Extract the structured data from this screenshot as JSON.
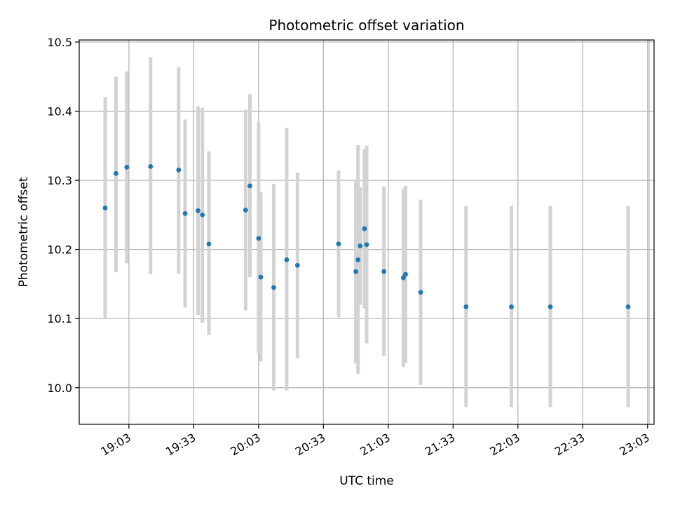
{
  "chart_data": {
    "type": "scatter",
    "title": "Photometric offset variation",
    "xlabel": "UTC time",
    "ylabel": "Photometric offset",
    "grid": true,
    "x_ticks": [
      "19:03",
      "19:33",
      "20:03",
      "20:33",
      "21:03",
      "21:33",
      "22:03",
      "22:33",
      "23:03"
    ],
    "y_ticks": [
      "10.0",
      "10.1",
      "10.2",
      "10.3",
      "10.4",
      "10.5"
    ],
    "xlim": [
      "18:40",
      "23:06"
    ],
    "ylim": [
      9.947,
      10.503
    ],
    "colors": {
      "points": "#1f77b4",
      "error_bars": "#d3d3d3",
      "grid": "#b0b0b0"
    },
    "series": [
      {
        "points": [
          {
            "x": "18:52",
            "y": 10.26,
            "ylow": 10.1,
            "yhigh": 10.42
          },
          {
            "x": "18:57",
            "y": 10.31,
            "ylow": 10.167,
            "yhigh": 10.45
          },
          {
            "x": "19:02",
            "y": 10.319,
            "ylow": 10.18,
            "yhigh": 10.458
          },
          {
            "x": "19:13",
            "y": 10.32,
            "ylow": 10.164,
            "yhigh": 10.478
          },
          {
            "x": "19:26",
            "y": 10.315,
            "ylow": 10.165,
            "yhigh": 10.464
          },
          {
            "x": "19:29",
            "y": 10.252,
            "ylow": 10.116,
            "yhigh": 10.388
          },
          {
            "x": "19:35",
            "y": 10.256,
            "ylow": 10.105,
            "yhigh": 10.407
          },
          {
            "x": "19:37",
            "y": 10.25,
            "ylow": 10.094,
            "yhigh": 10.405
          },
          {
            "x": "19:40",
            "y": 10.208,
            "ylow": 10.076,
            "yhigh": 10.342
          },
          {
            "x": "19:57",
            "y": 10.257,
            "ylow": 10.112,
            "yhigh": 10.402
          },
          {
            "x": "19:59",
            "y": 10.292,
            "ylow": 10.16,
            "yhigh": 10.425
          },
          {
            "x": "20:03",
            "y": 10.216,
            "ylow": 10.05,
            "yhigh": 10.384
          },
          {
            "x": "20:04",
            "y": 10.16,
            "ylow": 10.038,
            "yhigh": 10.283
          },
          {
            "x": "20:10",
            "y": 10.145,
            "ylow": 9.996,
            "yhigh": 10.295
          },
          {
            "x": "20:16",
            "y": 10.185,
            "ylow": 9.996,
            "yhigh": 10.376
          },
          {
            "x": "20:21",
            "y": 10.177,
            "ylow": 10.043,
            "yhigh": 10.311
          },
          {
            "x": "20:40",
            "y": 10.208,
            "ylow": 10.102,
            "yhigh": 10.314
          },
          {
            "x": "20:48",
            "y": 10.168,
            "ylow": 10.035,
            "yhigh": 10.3
          },
          {
            "x": "20:49",
            "y": 10.185,
            "ylow": 10.02,
            "yhigh": 10.351
          },
          {
            "x": "20:50",
            "y": 10.205,
            "ylow": 10.12,
            "yhigh": 10.29
          },
          {
            "x": "20:52",
            "y": 10.23,
            "ylow": 10.115,
            "yhigh": 10.345
          },
          {
            "x": "20:53",
            "y": 10.207,
            "ylow": 10.064,
            "yhigh": 10.35
          },
          {
            "x": "21:01",
            "y": 10.168,
            "ylow": 10.046,
            "yhigh": 10.291
          },
          {
            "x": "21:10",
            "y": 10.159,
            "ylow": 10.03,
            "yhigh": 10.288
          },
          {
            "x": "21:11",
            "y": 10.164,
            "ylow": 10.036,
            "yhigh": 10.292
          },
          {
            "x": "21:18",
            "y": 10.138,
            "ylow": 10.004,
            "yhigh": 10.272
          },
          {
            "x": "21:39",
            "y": 10.117,
            "ylow": 9.972,
            "yhigh": 10.263
          },
          {
            "x": "22:00",
            "y": 10.117,
            "ylow": 9.972,
            "yhigh": 10.263
          },
          {
            "x": "22:18",
            "y": 10.117,
            "ylow": 9.972,
            "yhigh": 10.263
          },
          {
            "x": "22:54",
            "y": 10.117,
            "ylow": 9.972,
            "yhigh": 10.263
          }
        ]
      }
    ]
  }
}
